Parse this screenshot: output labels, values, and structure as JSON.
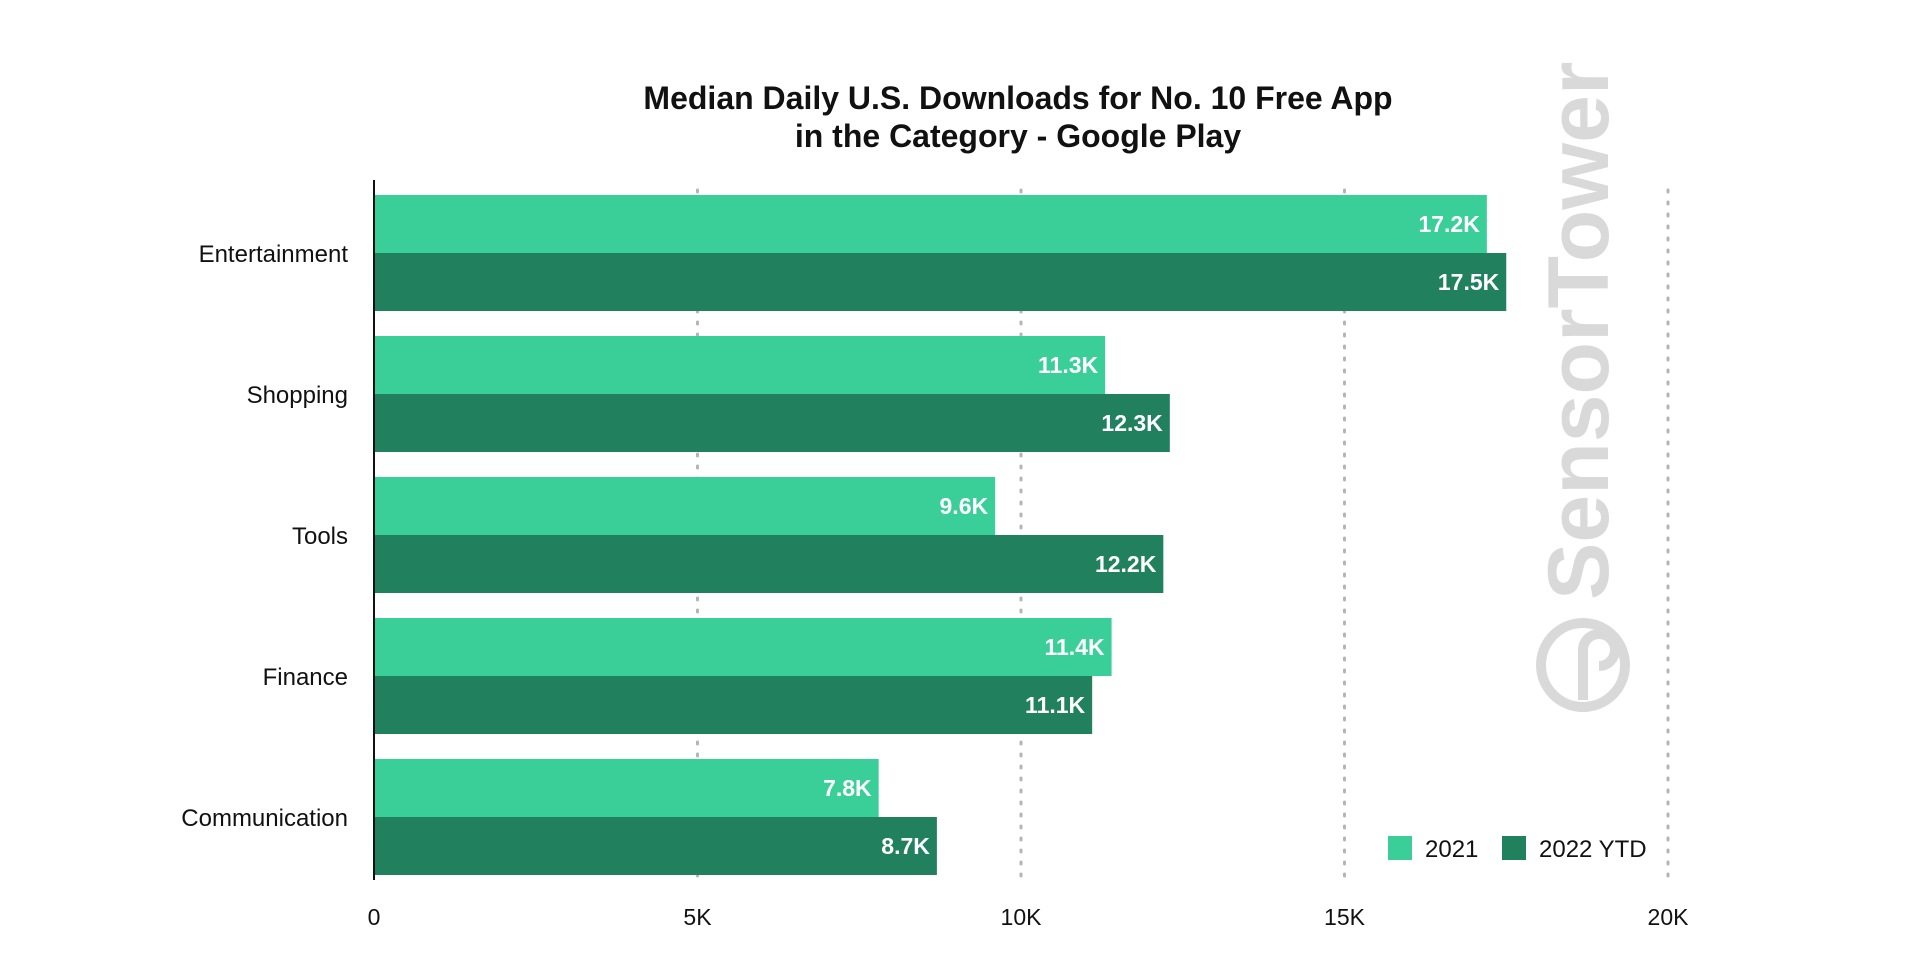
{
  "chart_data": {
    "type": "bar",
    "orientation": "horizontal",
    "title_lines": [
      "Median Daily U.S. Downloads for No. 10 Free App",
      "in the Category - Google Play"
    ],
    "categories": [
      "Entertainment",
      "Shopping",
      "Tools",
      "Finance",
      "Communication"
    ],
    "series": [
      {
        "name": "2021",
        "color": "#3acf98",
        "values": [
          17200,
          11300,
          9600,
          11400,
          7800
        ],
        "labels": [
          "17.2K",
          "11.3K",
          "9.6K",
          "11.4K",
          "7.8K"
        ]
      },
      {
        "name": "2022 YTD",
        "color": "#21805d",
        "values": [
          17500,
          12300,
          12200,
          11100,
          8700
        ],
        "labels": [
          "17.5K",
          "12.3K",
          "12.2K",
          "11.1K",
          "8.7K"
        ]
      }
    ],
    "xlim": [
      0,
      20000
    ],
    "xticks": [
      0,
      5000,
      10000,
      15000,
      20000
    ],
    "xtick_labels": [
      "0",
      "5K",
      "10K",
      "15K",
      "20K"
    ],
    "grid": "vertical-dotted",
    "legend_position": "bottom-right"
  },
  "watermark": {
    "text": "SensorTower",
    "color": "#d9d9d9"
  }
}
